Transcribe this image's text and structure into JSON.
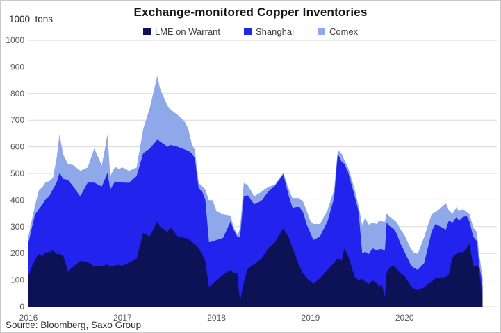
{
  "chart": {
    "title": "Exchange-monitored Copper Inventories",
    "y_unit": "1000  tons",
    "source": "Source: Bloomberg, Saxo Group"
  },
  "legend": [
    {
      "label": "LME on Warrant",
      "color": "#0d1155"
    },
    {
      "label": "Shanghai",
      "color": "#2323ee"
    },
    {
      "label": "Comex",
      "color": "#8fa8ea"
    }
  ],
  "chart_data": {
    "type": "area",
    "stacked": true,
    "title": "Exchange-monitored Copper Inventories",
    "ylabel": "1000 tons",
    "xlabel": "",
    "ylim": [
      0,
      1000
    ],
    "y_ticks": [
      0,
      100,
      200,
      300,
      400,
      500,
      600,
      700,
      800,
      900,
      1000
    ],
    "x_ticks": [
      2016,
      2017,
      2018,
      2019,
      2020
    ],
    "grid": "horizontal",
    "legend_position": "top",
    "x_unit": "decimal-year",
    "x": [
      2016.0,
      2016.04,
      2016.07,
      2016.11,
      2016.15,
      2016.18,
      2016.22,
      2016.26,
      2016.3,
      2016.33,
      2016.37,
      2016.42,
      2016.48,
      2016.55,
      2016.63,
      2016.7,
      2016.78,
      2016.84,
      2016.87,
      2016.92,
      2016.96,
      2017.0,
      2017.07,
      2017.15,
      2017.22,
      2017.29,
      2017.37,
      2017.4,
      2017.48,
      2017.51,
      2017.59,
      2017.66,
      2017.7,
      2017.74,
      2017.77,
      2017.81,
      2017.85,
      2017.88,
      2017.92,
      2017.96,
      2018.0,
      2018.07,
      2018.15,
      2018.18,
      2018.22,
      2018.25,
      2018.29,
      2018.33,
      2018.4,
      2018.48,
      2018.55,
      2018.62,
      2018.71,
      2018.77,
      2018.81,
      2018.88,
      2018.92,
      2018.96,
      2019.0,
      2019.03,
      2019.1,
      2019.18,
      2019.25,
      2019.29,
      2019.33,
      2019.36,
      2019.4,
      2019.47,
      2019.51,
      2019.55,
      2019.58,
      2019.62,
      2019.66,
      2019.7,
      2019.73,
      2019.76,
      2019.79,
      2019.81,
      2019.84,
      2019.88,
      2019.92,
      2019.95,
      2020.0,
      2020.07,
      2020.1,
      2020.14,
      2020.21,
      2020.29,
      2020.33,
      2020.44,
      2020.47,
      2020.51,
      2020.55,
      2020.58,
      2020.62,
      2020.66,
      2020.69,
      2020.73,
      2020.77,
      2020.79,
      2020.82,
      2020.83
    ],
    "series": [
      {
        "name": "LME on Warrant",
        "color": "#0d1155",
        "values": [
          115,
          154,
          177,
          198,
          190,
          203,
          205,
          211,
          198,
          198,
          190,
          133,
          150,
          172,
          167,
          151,
          151,
          159,
          150,
          155,
          157,
          154,
          165,
          180,
          276,
          263,
          320,
          300,
          280,
          297,
          263,
          258,
          255,
          242,
          235,
          219,
          195,
          172,
          73,
          85,
          99,
          120,
          138,
          125,
          125,
          21,
          90,
          141,
          159,
          180,
          219,
          242,
          294,
          258,
          219,
          154,
          125,
          107,
          95,
          86,
          107,
          138,
          164,
          182,
          172,
          219,
          190,
          112,
          100,
          105,
          94,
          86,
          99,
          89,
          76,
          81,
          37,
          128,
          146,
          154,
          141,
          128,
          115,
          75,
          68,
          62,
          73,
          94,
          107,
          112,
          120,
          185,
          198,
          206,
          203,
          220,
          237,
          151,
          155,
          145,
          55,
          42
        ]
      },
      {
        "name": "Shanghai",
        "color": "#2323ee",
        "values": [
          125,
          148,
          169,
          169,
          195,
          199,
          210,
          230,
          269,
          304,
          290,
          343,
          300,
          242,
          299,
          315,
          300,
          343,
          290,
          315,
          310,
          312,
          300,
          310,
          300,
          330,
          307,
          320,
          320,
          310,
          337,
          332,
          330,
          333,
          320,
          226,
          235,
          230,
          169,
          160,
          151,
          138,
          182,
          165,
          138,
          239,
          324,
          278,
          226,
          218,
          213,
          211,
          203,
          156,
          150,
          221,
          230,
          200,
          180,
          164,
          156,
          182,
          242,
          393,
          372,
          317,
          315,
          302,
          259,
          95,
          112,
          112,
          120,
          122,
          140,
          135,
          173,
          187,
          156,
          140,
          131,
          114,
          91,
          78,
          78,
          76,
          91,
          190,
          203,
          177,
          203,
          130,
          138,
          117,
          133,
          120,
          83,
          112,
          90,
          25,
          45,
          36
        ]
      },
      {
        "name": "Comex",
        "color": "#8fa8ea",
        "values": [
          25,
          31,
          34,
          70,
          65,
          65,
          56,
          43,
          93,
          144,
          90,
          60,
          81,
          96,
          57,
          128,
          79,
          144,
          50,
          55,
          50,
          57,
          45,
          33,
          91,
          152,
          240,
          198,
          153,
          133,
          119,
          105,
          82,
          32,
          33,
          21,
          20,
          38,
          156,
          153,
          109,
          88,
          21,
          10,
          8,
          30,
          50,
          39,
          29,
          34,
          18,
          5,
          5,
          26,
          37,
          31,
          40,
          52,
          45,
          60,
          47,
          42,
          31,
          13,
          31,
          14,
          18,
          26,
          21,
          105,
          127,
          109,
          96,
          99,
          107,
          104,
          108,
          35,
          35,
          34,
          43,
          52,
          62,
          62,
          57,
          60,
          99,
          65,
          45,
          99,
          39,
          34,
          36,
          36,
          31,
          15,
          29,
          34,
          35,
          40,
          33,
          34
        ]
      }
    ]
  }
}
